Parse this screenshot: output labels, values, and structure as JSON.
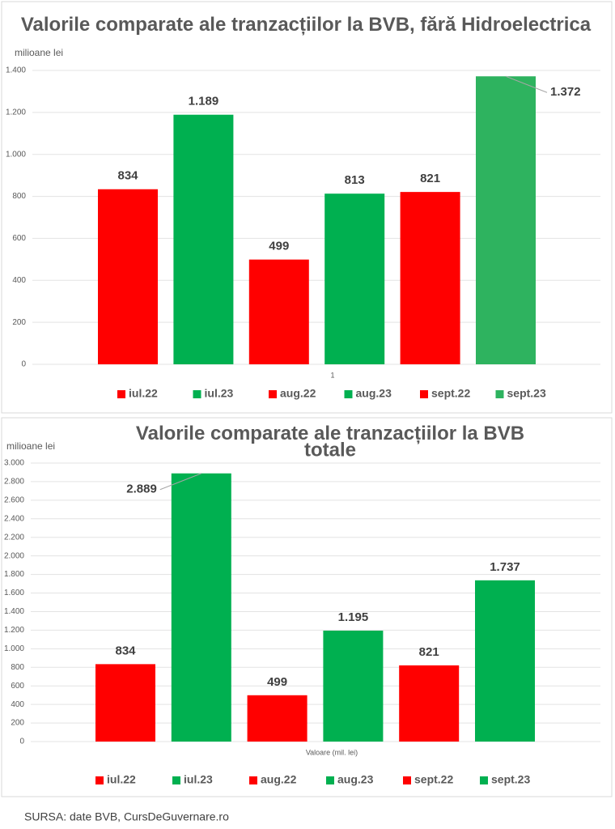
{
  "chart_data": [
    {
      "type": "bar",
      "title": "Valorile comparate ale tranzacțiilor la BVB, fără Hidroelectrica",
      "y_label": "milioane lei",
      "categories": [
        "1"
      ],
      "series": [
        {
          "name": "iul.22",
          "color": "#ff0000",
          "values": [
            834
          ]
        },
        {
          "name": "iul.23",
          "color": "#00b050",
          "values": [
            1189
          ],
          "value_labels": [
            "1.189"
          ]
        },
        {
          "name": "aug.22",
          "color": "#ff0000",
          "values": [
            499
          ]
        },
        {
          "name": "aug.23",
          "color": "#00b050",
          "values": [
            813
          ]
        },
        {
          "name": "sept.22",
          "color": "#ff0000",
          "values": [
            821
          ]
        },
        {
          "name": "sept.23",
          "color": "#2eb35f",
          "values": [
            1372
          ],
          "value_labels": [
            "1.372"
          ]
        }
      ],
      "ylim": [
        0,
        1400
      ],
      "yticks": [
        0,
        200,
        400,
        600,
        800,
        {
          "value": 1000,
          "label": "1.000"
        },
        {
          "value": 1200,
          "label": "1.200"
        },
        {
          "value": 1400,
          "label": "1.400"
        }
      ],
      "grid": true,
      "legend": "bottom"
    },
    {
      "type": "bar",
      "title": "Valorile comparate ale tranzacțiilor  la BVB\ntotale",
      "y_label": "milioane lei",
      "categories": [
        "Valoare (mil. lei)"
      ],
      "series": [
        {
          "name": "iul.22",
          "color": "#ff0000",
          "values": [
            834
          ]
        },
        {
          "name": "iul.23",
          "color": "#00b050",
          "values": [
            2889
          ],
          "value_labels": [
            "2.889"
          ]
        },
        {
          "name": "aug.22",
          "color": "#ff0000",
          "values": [
            499
          ]
        },
        {
          "name": "aug.23",
          "color": "#00b050",
          "values": [
            1195
          ],
          "value_labels": [
            "1.195"
          ]
        },
        {
          "name": "sept.22",
          "color": "#ff0000",
          "values": [
            821
          ]
        },
        {
          "name": "sept.23",
          "color": "#00b050",
          "values": [
            1737
          ],
          "value_labels": [
            "1.737"
          ]
        }
      ],
      "ylim": [
        0,
        3000
      ],
      "yticks": [
        0,
        200,
        400,
        600,
        800,
        {
          "value": 1000,
          "label": "1.000"
        },
        {
          "value": 1200,
          "label": "1.200"
        },
        {
          "value": 1400,
          "label": "1.400"
        },
        {
          "value": 1600,
          "label": "1.600"
        },
        {
          "value": 1800,
          "label": "1.800"
        },
        {
          "value": 2000,
          "label": "2.000"
        },
        {
          "value": 2200,
          "label": "2.200"
        },
        {
          "value": 2400,
          "label": "2.400"
        },
        {
          "value": 2600,
          "label": "2.600"
        },
        {
          "value": 2800,
          "label": "2.800"
        },
        {
          "value": 3000,
          "label": "3.000"
        }
      ],
      "grid": true,
      "legend": "bottom"
    }
  ],
  "source": "SURSA: date BVB, CursDeGuvernare.ro"
}
